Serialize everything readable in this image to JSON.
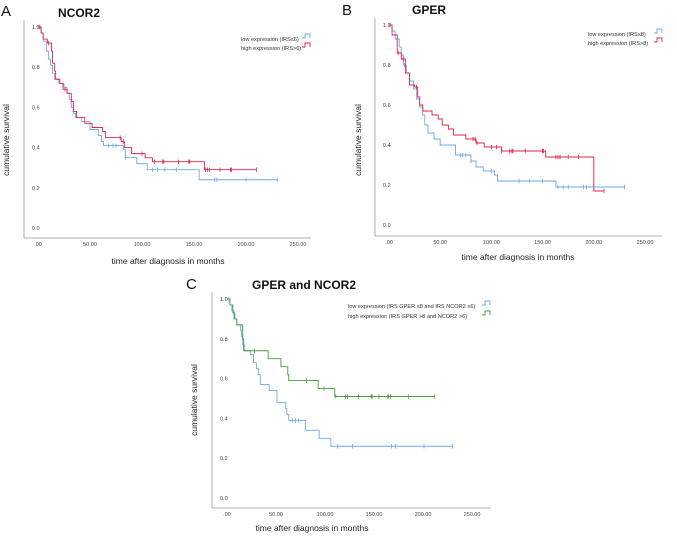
{
  "chart_data": [
    {
      "panel": "A",
      "type": "line",
      "title": "NCOR2",
      "xlabel": "time after diagnosis in months",
      "ylabel": "cumulative survival",
      "xlim": [
        0,
        250
      ],
      "ylim": [
        0,
        1
      ],
      "xticks": [
        ".00",
        "50.00",
        "100.00",
        "150.00",
        "200.00",
        "250.00"
      ],
      "yticks": [
        "0.0",
        "0.2",
        "0.4",
        "0.6",
        "0.8",
        "1.0"
      ],
      "legend_position": "top-right",
      "series": [
        {
          "name": "low expression (IRS≤6)",
          "color": "#6fa8e8",
          "steps": [
            [
              0,
              1
            ],
            [
              3,
              0.97
            ],
            [
              5,
              0.93
            ],
            [
              8,
              0.88
            ],
            [
              10,
              0.84
            ],
            [
              12,
              0.81
            ],
            [
              14,
              0.77
            ],
            [
              16,
              0.74
            ],
            [
              20,
              0.72
            ],
            [
              25,
              0.7
            ],
            [
              28,
              0.67
            ],
            [
              30,
              0.64
            ],
            [
              32,
              0.6
            ],
            [
              34,
              0.57
            ],
            [
              36,
              0.55
            ],
            [
              42,
              0.53
            ],
            [
              50,
              0.49
            ],
            [
              58,
              0.46
            ],
            [
              61,
              0.43
            ],
            [
              63,
              0.41
            ],
            [
              82,
              0.39
            ],
            [
              84,
              0.35
            ],
            [
              95,
              0.32
            ],
            [
              105,
              0.29
            ],
            [
              155,
              0.24
            ]
          ],
          "end": 230,
          "censored": [
            2,
            68,
            72,
            75,
            84,
            110,
            115,
            122,
            133,
            170,
            172,
            200,
            230
          ]
        },
        {
          "name": "high expression (IRS>6)",
          "color": "#e0234a",
          "steps": [
            [
              0,
              1
            ],
            [
              3,
              0.97
            ],
            [
              5,
              0.94
            ],
            [
              9,
              0.92
            ],
            [
              13,
              0.88
            ],
            [
              14,
              0.82
            ],
            [
              16,
              0.78
            ],
            [
              17,
              0.74
            ],
            [
              21,
              0.72
            ],
            [
              24,
              0.69
            ],
            [
              28,
              0.67
            ],
            [
              32,
              0.63
            ],
            [
              34,
              0.58
            ],
            [
              37,
              0.55
            ],
            [
              45,
              0.52
            ],
            [
              52,
              0.5
            ],
            [
              62,
              0.48
            ],
            [
              65,
              0.45
            ],
            [
              80,
              0.43
            ],
            [
              83,
              0.4
            ],
            [
              90,
              0.37
            ],
            [
              103,
              0.35
            ],
            [
              110,
              0.33
            ],
            [
              160,
              0.29
            ]
          ],
          "end": 210,
          "censored": [
            1,
            10,
            26,
            79,
            82,
            100,
            112,
            120,
            121,
            135,
            145,
            146,
            161,
            163,
            165,
            175,
            185,
            186,
            210
          ]
        }
      ]
    },
    {
      "panel": "B",
      "type": "line",
      "title": "GPER",
      "xlabel": "time after diagnosis in months",
      "ylabel": "cumulative survival",
      "xlim": [
        0,
        250
      ],
      "ylim": [
        0,
        1
      ],
      "xticks": [
        ".00",
        "50.00",
        "100.00",
        "150.00",
        "200.00",
        "250.00"
      ],
      "yticks": [
        "0.0",
        "0.2",
        "0.4",
        "0.6",
        "0.8",
        "1.0"
      ],
      "legend_position": "top-right",
      "series": [
        {
          "name": "low expression (IRS≤8)",
          "color": "#6fa8e8",
          "steps": [
            [
              0,
              1
            ],
            [
              3,
              0.97
            ],
            [
              6,
              0.93
            ],
            [
              10,
              0.89
            ],
            [
              12,
              0.85
            ],
            [
              14,
              0.8
            ],
            [
              17,
              0.76
            ],
            [
              20,
              0.72
            ],
            [
              24,
              0.68
            ],
            [
              27,
              0.63
            ],
            [
              30,
              0.59
            ],
            [
              33,
              0.55
            ],
            [
              35,
              0.5
            ],
            [
              38,
              0.46
            ],
            [
              44,
              0.43
            ],
            [
              50,
              0.4
            ],
            [
              65,
              0.35
            ],
            [
              80,
              0.32
            ],
            [
              85,
              0.29
            ],
            [
              92,
              0.27
            ],
            [
              103,
              0.25
            ],
            [
              106,
              0.22
            ],
            [
              163,
              0.19
            ]
          ],
          "end": 230,
          "censored": [
            15,
            70,
            72,
            75,
            80,
            100,
            127,
            137,
            150,
            165,
            170,
            175,
            190,
            193,
            200,
            230
          ]
        },
        {
          "name": "high expression (IRS>8)",
          "color": "#e0234a",
          "steps": [
            [
              0,
              1
            ],
            [
              3,
              0.95
            ],
            [
              8,
              0.86
            ],
            [
              12,
              0.83
            ],
            [
              16,
              0.76
            ],
            [
              20,
              0.7
            ],
            [
              25,
              0.69
            ],
            [
              28,
              0.64
            ],
            [
              30,
              0.6
            ],
            [
              33,
              0.57
            ],
            [
              42,
              0.55
            ],
            [
              48,
              0.53
            ],
            [
              52,
              0.5
            ],
            [
              58,
              0.48
            ],
            [
              63,
              0.45
            ],
            [
              75,
              0.43
            ],
            [
              85,
              0.41
            ],
            [
              93,
              0.39
            ],
            [
              110,
              0.37
            ],
            [
              153,
              0.34
            ],
            [
              200,
              0.17
            ]
          ],
          "end": 210,
          "censored": [
            1,
            9,
            14,
            27,
            82,
            84,
            86,
            100,
            105,
            110,
            118,
            120,
            121,
            133,
            150,
            151,
            163,
            165,
            167,
            175,
            185,
            210
          ]
        }
      ]
    },
    {
      "panel": "C",
      "type": "line",
      "title": "GPER and NCOR2",
      "xlabel": "time after diagnosis in months",
      "ylabel": "cumulative survival",
      "xlim": [
        0,
        250
      ],
      "ylim": [
        0,
        1
      ],
      "xticks": [
        ".00",
        "50.00",
        "100.00",
        "150.00",
        "200.00",
        "250.00"
      ],
      "yticks": [
        "0.0",
        "0.2",
        "0.4",
        "0.6",
        "0.8",
        "1.0"
      ],
      "legend_position": "top-right",
      "series": [
        {
          "name": "low expression (IRS GPER ≤8 and IRS NCOR2 ≤6)",
          "color": "#6fa8e8",
          "steps": [
            [
              0,
              1
            ],
            [
              3,
              0.97
            ],
            [
              5,
              0.94
            ],
            [
              7,
              0.9
            ],
            [
              10,
              0.87
            ],
            [
              14,
              0.84
            ],
            [
              15,
              0.81
            ],
            [
              16,
              0.77
            ],
            [
              18,
              0.74
            ],
            [
              24,
              0.72
            ],
            [
              27,
              0.68
            ],
            [
              30,
              0.65
            ],
            [
              32,
              0.62
            ],
            [
              34,
              0.57
            ],
            [
              43,
              0.54
            ],
            [
              51,
              0.48
            ],
            [
              60,
              0.45
            ],
            [
              61,
              0.42
            ],
            [
              63,
              0.39
            ],
            [
              80,
              0.34
            ],
            [
              94,
              0.3
            ],
            [
              106,
              0.26
            ]
          ],
          "end": 230,
          "censored": [
            2,
            67,
            70,
            73,
            113,
            128,
            168,
            172,
            201,
            230
          ]
        },
        {
          "name": "high expression (IRS GPER >8 and NCOR2 >6)",
          "color": "#4a9a3a",
          "steps": [
            [
              0,
              1
            ],
            [
              3,
              0.97
            ],
            [
              6,
              0.93
            ],
            [
              8,
              0.9
            ],
            [
              10,
              0.87
            ],
            [
              16,
              0.8
            ],
            [
              17,
              0.74
            ],
            [
              42,
              0.7
            ],
            [
              55,
              0.66
            ],
            [
              62,
              0.62
            ],
            [
              63,
              0.59
            ],
            [
              93,
              0.55
            ],
            [
              110,
              0.51
            ]
          ],
          "end": 212,
          "censored": [
            28,
            81,
            99,
            111,
            121,
            123,
            134,
            147,
            148,
            155,
            164,
            165,
            167,
            185,
            212
          ]
        }
      ]
    }
  ]
}
